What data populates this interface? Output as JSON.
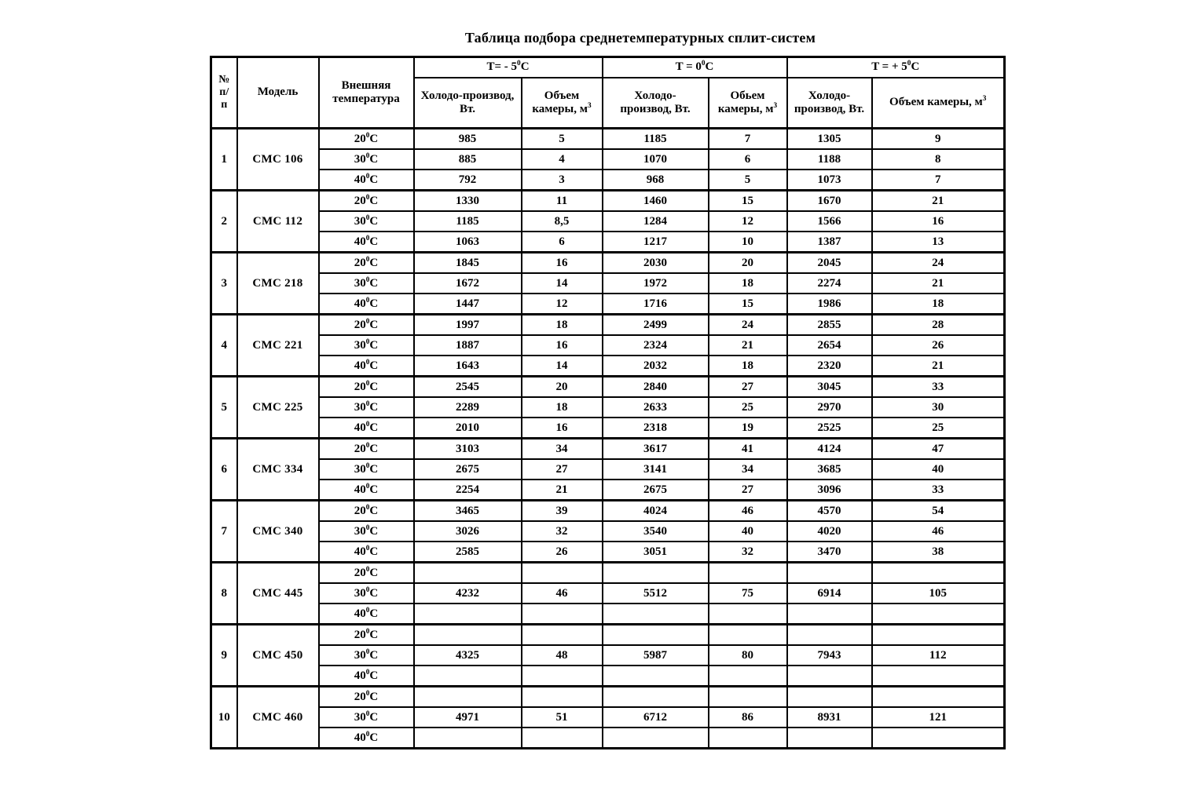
{
  "title": "Таблица подбора среднетемпературных сплит-систем",
  "table": {
    "header": {
      "num": "№\nп/\nп",
      "model": "Модель",
      "ext_temp": "Внешняя\nтемпература",
      "groups": [
        {
          "label": "T= - 5⁰C",
          "cold": "Холодо-производ,\nВт.",
          "volume": "Объем\nкамеры, м³"
        },
        {
          "label": "T = 0⁰C",
          "cold": "Холодо-\nпроизвод, Вт.",
          "volume": "Обьем\nкамеры, м³"
        },
        {
          "label": "T = + 5⁰C",
          "cold": "Холодо-\nпроизвод, Вт.",
          "volume": "Объем камеры, м³"
        }
      ]
    },
    "rows": [
      {
        "num": "1",
        "model": "СМС 106",
        "temps": [
          {
            "t": "20⁰C",
            "values": [
              "985",
              "5",
              "1185",
              "7",
              "1305",
              "9"
            ]
          },
          {
            "t": "30⁰C",
            "values": [
              "885",
              "4",
              "1070",
              "6",
              "1188",
              "8"
            ]
          },
          {
            "t": "40⁰C",
            "values": [
              "792",
              "3",
              "968",
              "5",
              "1073",
              "7"
            ]
          }
        ]
      },
      {
        "num": "2",
        "model": "СМС 112",
        "temps": [
          {
            "t": "20⁰C",
            "values": [
              "1330",
              "11",
              "1460",
              "15",
              "1670",
              "21"
            ]
          },
          {
            "t": "30⁰C",
            "values": [
              "1185",
              "8,5",
              "1284",
              "12",
              "1566",
              "16"
            ]
          },
          {
            "t": "40⁰C",
            "values": [
              "1063",
              "6",
              "1217",
              "10",
              "1387",
              "13"
            ]
          }
        ]
      },
      {
        "num": "3",
        "model": "СМС 218",
        "temps": [
          {
            "t": "20⁰C",
            "values": [
              "1845",
              "16",
              "2030",
              "20",
              "2045",
              "24"
            ]
          },
          {
            "t": "30⁰C",
            "values": [
              "1672",
              "14",
              "1972",
              "18",
              "2274",
              "21"
            ]
          },
          {
            "t": "40⁰C",
            "values": [
              "1447",
              "12",
              "1716",
              "15",
              "1986",
              "18"
            ]
          }
        ]
      },
      {
        "num": "4",
        "model": "СМС 221",
        "temps": [
          {
            "t": "20⁰C",
            "values": [
              "1997",
              "18",
              "2499",
              "24",
              "2855",
              "28"
            ]
          },
          {
            "t": "30⁰C",
            "values": [
              "1887",
              "16",
              "2324",
              "21",
              "2654",
              "26"
            ]
          },
          {
            "t": "40⁰C",
            "values": [
              "1643",
              "14",
              "2032",
              "18",
              "2320",
              "21"
            ]
          }
        ]
      },
      {
        "num": "5",
        "model": "СМС 225",
        "temps": [
          {
            "t": "20⁰C",
            "values": [
              "2545",
              "20",
              "2840",
              "27",
              "3045",
              "33"
            ]
          },
          {
            "t": "30⁰C",
            "values": [
              "2289",
              "18",
              "2633",
              "25",
              "2970",
              "30"
            ]
          },
          {
            "t": "40⁰C",
            "values": [
              "2010",
              "16",
              "2318",
              "19",
              "2525",
              "25"
            ]
          }
        ]
      },
      {
        "num": "6",
        "model": "СМС 334",
        "temps": [
          {
            "t": "20⁰C",
            "values": [
              "3103",
              "34",
              "3617",
              "41",
              "4124",
              "47"
            ]
          },
          {
            "t": "30⁰C",
            "values": [
              "2675",
              "27",
              "3141",
              "34",
              "3685",
              "40"
            ]
          },
          {
            "t": "40⁰C",
            "values": [
              "2254",
              "21",
              "2675",
              "27",
              "3096",
              "33"
            ]
          }
        ]
      },
      {
        "num": "7",
        "model": "СМС 340",
        "temps": [
          {
            "t": "20⁰C",
            "values": [
              "3465",
              "39",
              "4024",
              "46",
              "4570",
              "54"
            ]
          },
          {
            "t": "30⁰C",
            "values": [
              "3026",
              "32",
              "3540",
              "40",
              "4020",
              "46"
            ]
          },
          {
            "t": "40⁰C",
            "values": [
              "2585",
              "26",
              "3051",
              "32",
              "3470",
              "38"
            ]
          }
        ]
      },
      {
        "num": "8",
        "model": "СМС 445",
        "temps": [
          {
            "t": "20⁰C",
            "values": [
              "",
              "",
              "",
              "",
              "",
              ""
            ]
          },
          {
            "t": "30⁰C",
            "values": [
              "4232",
              "46",
              "5512",
              "75",
              "6914",
              "105"
            ]
          },
          {
            "t": "40⁰C",
            "values": [
              "",
              "",
              "",
              "",
              "",
              ""
            ]
          }
        ]
      },
      {
        "num": "9",
        "model": "СМС 450",
        "temps": [
          {
            "t": "20⁰C",
            "values": [
              "",
              "",
              "",
              "",
              "",
              ""
            ]
          },
          {
            "t": "30⁰C",
            "values": [
              "4325",
              "48",
              "5987",
              "80",
              "7943",
              "112"
            ]
          },
          {
            "t": "40⁰C",
            "values": [
              "",
              "",
              "",
              "",
              "",
              ""
            ]
          }
        ]
      },
      {
        "num": "10",
        "model": "СМС 460",
        "temps": [
          {
            "t": "20⁰C",
            "values": [
              "",
              "",
              "",
              "",
              "",
              ""
            ]
          },
          {
            "t": "30⁰C",
            "values": [
              "4971",
              "51",
              "6712",
              "86",
              "8931",
              "121"
            ]
          },
          {
            "t": "40⁰C",
            "values": [
              "",
              "",
              "",
              "",
              "",
              ""
            ]
          }
        ]
      }
    ]
  }
}
